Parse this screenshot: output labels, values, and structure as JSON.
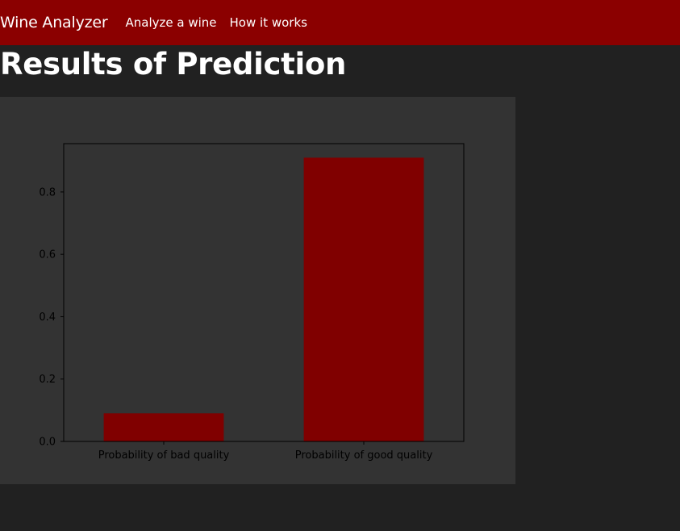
{
  "navbar": {
    "brand": "Wine Analyzer",
    "links": [
      {
        "label": "Analyze a wine"
      },
      {
        "label": "How it works"
      }
    ],
    "color": "#8b0000"
  },
  "page": {
    "title": "Results of Prediction",
    "background": "#212121"
  },
  "chart_data": {
    "type": "bar",
    "categories": [
      "Probability of bad quality",
      "Probability of good quality"
    ],
    "values": [
      0.09,
      0.91
    ],
    "bar_color": "#800000",
    "panel_color": "#333333",
    "title": "",
    "xlabel": "",
    "ylabel": "",
    "ylim": [
      0,
      0.955
    ],
    "yticks": [
      0.0,
      0.2,
      0.4,
      0.6,
      0.8
    ],
    "ytick_labels": [
      "0.0",
      "0.2",
      "0.4",
      "0.6",
      "0.8"
    ],
    "grid": false
  }
}
